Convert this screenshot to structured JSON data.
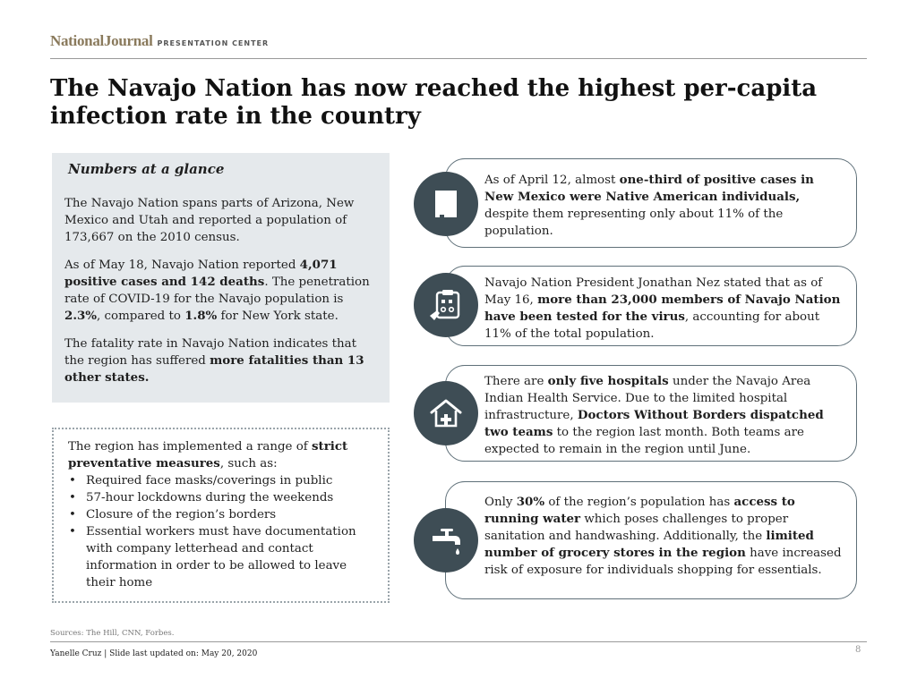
{
  "header": {
    "brand_main": "NationalJournal",
    "brand_sub": "PRESENTATION CENTER"
  },
  "title_line1": "The Navajo Nation has now reached the highest per-capita",
  "title_line2": "infection rate in the country",
  "glance": {
    "heading": "Numbers at a glance",
    "p1": "The Navajo Nation spans parts of Arizona, New Mexico and Utah and reported a population of 173,667 on the 2010 census.",
    "p2_a": "As of May 18, Navajo Nation reported ",
    "p2_b": "4,071 positive cases and 142 deaths",
    "p2_c": ". The penetration rate of COVID-19 for the Navajo population is ",
    "p2_d": "2.3%",
    "p2_e": ", compared to ",
    "p2_f": "1.8%",
    "p2_g": " for New York state.",
    "p3_a": "The fatality rate in Navajo Nation indicates that the region has suffered ",
    "p3_b": "more fatalities than 13 other states."
  },
  "measures": {
    "intro_a": "The region has implemented a range of ",
    "intro_b": "strict preventative measures",
    "intro_c": ", such as:",
    "items": [
      "Required face masks/coverings in public",
      "57-hour lockdowns during the weekends",
      "Closure of the region’s borders",
      "Essential workers must have documentation with company letterhead and contact information in order to be allowed to leave their home"
    ]
  },
  "cards": [
    {
      "icon": "new-mexico-map-icon",
      "a": "As of April 12, almost ",
      "b": "one-third of positive cases in New Mexico were Native American individuals,",
      "c": " despite them representing only about 11% of the population."
    },
    {
      "icon": "clipboard-test-icon",
      "a": "Navajo Nation President Jonathan Nez stated that as of May 16, ",
      "b": "more than 23,000 members of Navajo Nation have been tested for the virus",
      "c": ", accounting for about 11% of the total population."
    },
    {
      "icon": "hospital-house-icon",
      "a": "There are ",
      "b": "only five hospitals",
      "c": " under the Navajo Area Indian Health Service. Due to the limited hospital infrastructure, ",
      "d": "Doctors Without Borders dispatched two teams",
      "e": " to the region last month. Both teams are expected to remain in the region until June."
    },
    {
      "icon": "water-faucet-icon",
      "a": "Only ",
      "b": "30%",
      "c": " of the region’s population has ",
      "d": "access to running water",
      "e": " which poses challenges to proper sanitation and handwashing. Additionally, the ",
      "f": "limited number of grocery stores in the region",
      "g": " have increased risk of exposure for individuals shopping for essentials."
    }
  ],
  "footer": {
    "sources": "Sources: The Hill, CNN, Forbes.",
    "author": "Yanelle Cruz | Slide last updated on: May 20, 2020",
    "page": "8"
  },
  "colors": {
    "icon_circle": "#3e4d55",
    "card_border": "#5f7079",
    "glance_bg": "#e5e9ec",
    "brand": "#8a7a5c"
  }
}
